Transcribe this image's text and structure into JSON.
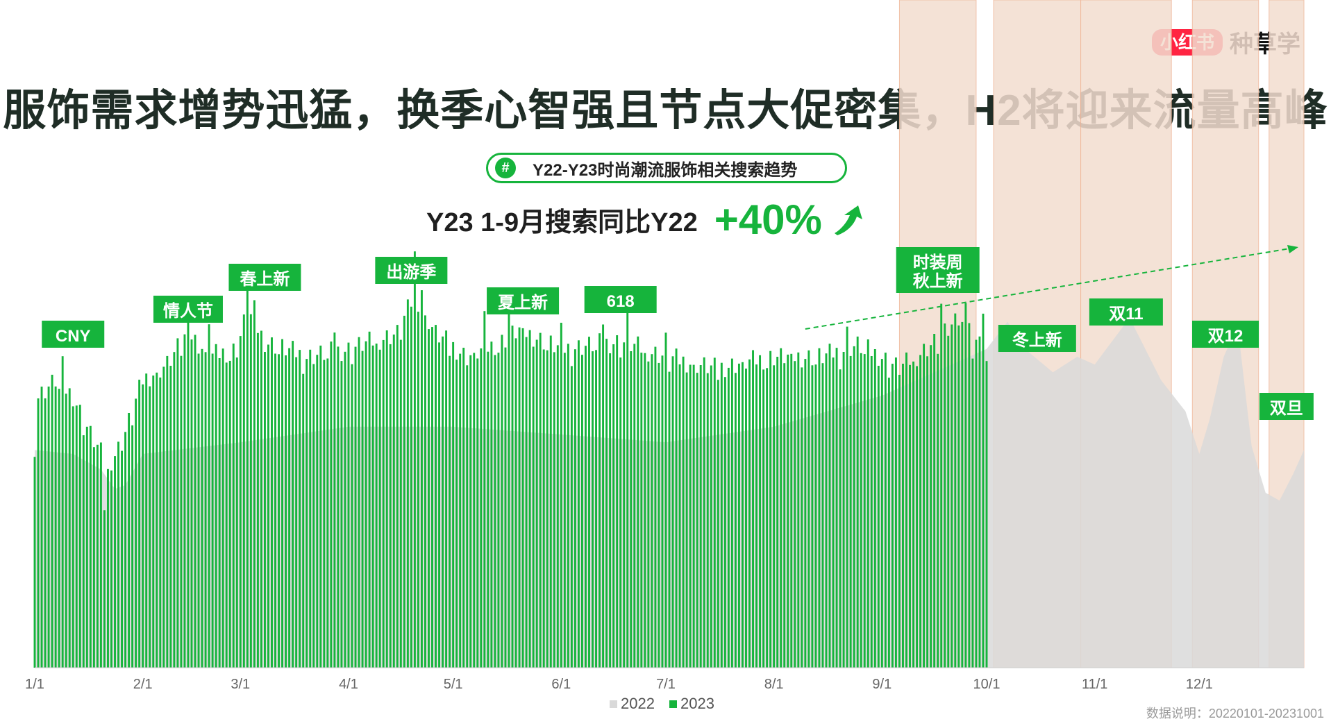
{
  "brand": {
    "badge": "小红书",
    "text": "种草学"
  },
  "headline": "服饰需求增势迅猛，换季心智强且节点大促密集，H2将迎来流量高峰",
  "subtitle_pill": {
    "icon": "hash-icon",
    "text": "Y22-Y23时尚潮流服饰相关搜索趋势"
  },
  "stat": {
    "label": "Y23 1-9月搜索同比Y22",
    "value": "+40%",
    "icon": "up-arrow-icon"
  },
  "footnote": "数据说明：20220101-20231001",
  "colors": {
    "series_2023": "#16b43c",
    "series_2022": "#d9d9d9",
    "highlight": "#f3ddd0",
    "accent": "#16b43c",
    "brand": "#ff2442"
  },
  "chart_data": {
    "type": "area",
    "x_axis": {
      "type": "date",
      "range": [
        "2023-01-01",
        "2023-12-31"
      ],
      "tick_labels": [
        "1/1",
        "2/1",
        "3/1",
        "4/1",
        "5/1",
        "6/1",
        "7/1",
        "8/1",
        "9/1",
        "10/1",
        "11/1",
        "12/1"
      ]
    },
    "y_axis": {
      "visible": false,
      "unit": "relative search index",
      "ylim": [
        0,
        100
      ]
    },
    "grid": false,
    "legend": {
      "position": "bottom-center",
      "items": [
        {
          "name": "2022",
          "color": "#d9d9d9"
        },
        {
          "name": "2023",
          "color": "#16b43c"
        }
      ]
    },
    "series": [
      {
        "name": "2023",
        "mark": "bar",
        "range": [
          "2023-01-01",
          "2023-10-01"
        ],
        "keypoints": [
          [
            "2023-01-01",
            69
          ],
          [
            "2023-01-07",
            74
          ],
          [
            "2023-01-12",
            70
          ],
          [
            "2023-01-17",
            60
          ],
          [
            "2023-01-22",
            52
          ],
          [
            "2023-01-26",
            58
          ],
          [
            "2023-02-01",
            74
          ],
          [
            "2023-02-08",
            78
          ],
          [
            "2023-02-14",
            86
          ],
          [
            "2023-02-20",
            80
          ],
          [
            "2023-02-28",
            82
          ],
          [
            "2023-03-03",
            92
          ],
          [
            "2023-03-08",
            84
          ],
          [
            "2023-03-20",
            80
          ],
          [
            "2023-04-01",
            82
          ],
          [
            "2023-04-15",
            86
          ],
          [
            "2023-04-20",
            96
          ],
          [
            "2023-04-26",
            86
          ],
          [
            "2023-05-05",
            80
          ],
          [
            "2023-05-15",
            84
          ],
          [
            "2023-05-20",
            87
          ],
          [
            "2023-06-01",
            82
          ],
          [
            "2023-06-18",
            84
          ],
          [
            "2023-07-01",
            80
          ],
          [
            "2023-07-15",
            77
          ],
          [
            "2023-08-01",
            80
          ],
          [
            "2023-08-15",
            80
          ],
          [
            "2023-08-25",
            83
          ],
          [
            "2023-09-01",
            80
          ],
          [
            "2023-09-06",
            77
          ],
          [
            "2023-09-15",
            83
          ],
          [
            "2023-09-25",
            90
          ],
          [
            "2023-10-01",
            82
          ]
        ],
        "spikes": [
          [
            "2023-01-01",
            -10
          ],
          [
            "2023-01-09",
            5
          ],
          [
            "2023-01-21",
            -12
          ],
          [
            "2023-02-14",
            8
          ],
          [
            "2023-02-20",
            10
          ],
          [
            "2023-03-03",
            12
          ],
          [
            "2023-03-05",
            5
          ],
          [
            "2023-03-28",
            6
          ],
          [
            "2023-04-20",
            10
          ],
          [
            "2023-04-22",
            5
          ],
          [
            "2023-05-10",
            7
          ],
          [
            "2023-05-17",
            8
          ],
          [
            "2023-06-01",
            4
          ],
          [
            "2023-06-13",
            6
          ],
          [
            "2023-06-20",
            7
          ],
          [
            "2023-07-01",
            4
          ],
          [
            "2023-08-22",
            4
          ],
          [
            "2023-09-18",
            8
          ],
          [
            "2023-09-22",
            6
          ],
          [
            "2023-09-25",
            6
          ],
          [
            "2023-09-27",
            -10
          ],
          [
            "2023-09-30",
            5
          ]
        ]
      },
      {
        "name": "2022",
        "mark": "area",
        "range": [
          "2023-01-01",
          "2023-12-31"
        ],
        "keypoints": [
          [
            "2023-01-01",
            56
          ],
          [
            "2023-01-12",
            55
          ],
          [
            "2023-01-20",
            51
          ],
          [
            "2023-01-24",
            46
          ],
          [
            "2023-01-27",
            47
          ],
          [
            "2023-02-01",
            55
          ],
          [
            "2023-03-01",
            58
          ],
          [
            "2023-04-01",
            62
          ],
          [
            "2023-05-01",
            62
          ],
          [
            "2023-06-01",
            60
          ],
          [
            "2023-07-01",
            58
          ],
          [
            "2023-08-01",
            62
          ],
          [
            "2023-09-01",
            70
          ],
          [
            "2023-10-01",
            82
          ],
          [
            "2023-10-07",
            89
          ],
          [
            "2023-10-12",
            82
          ],
          [
            "2023-10-20",
            76
          ],
          [
            "2023-10-27",
            80
          ],
          [
            "2023-11-01",
            78
          ],
          [
            "2023-11-11",
            90
          ],
          [
            "2023-11-20",
            74
          ],
          [
            "2023-11-27",
            66
          ],
          [
            "2023-12-01",
            55
          ],
          [
            "2023-12-04",
            64
          ],
          [
            "2023-12-08",
            80
          ],
          [
            "2023-12-12",
            88
          ],
          [
            "2023-12-16",
            57
          ],
          [
            "2023-12-20",
            45
          ],
          [
            "2023-12-24",
            43
          ],
          [
            "2023-12-28",
            50
          ],
          [
            "2023-12-31",
            56
          ]
        ]
      }
    ],
    "highlight_periods": [
      {
        "label": "时装周\n秋上新",
        "start": "2023-09-06",
        "end": "2023-09-28"
      },
      {
        "label": "冬上新",
        "start": "2023-10-03",
        "end": "2023-10-28"
      },
      {
        "label": "双11",
        "start": "2023-10-28",
        "end": "2023-11-23"
      },
      {
        "label": "双12",
        "start": "2023-11-29",
        "end": "2023-12-18"
      },
      {
        "label": "双旦",
        "start": "2023-12-21",
        "end": "2023-12-31"
      }
    ],
    "annotations": [
      {
        "label": "CNY",
        "date": "2023-01-12"
      },
      {
        "label": "情人节",
        "date": "2023-02-14"
      },
      {
        "label": "春上新",
        "date": "2023-03-08"
      },
      {
        "label": "出游季",
        "date": "2023-04-19"
      },
      {
        "label": "夏上新",
        "date": "2023-05-21"
      },
      {
        "label": "618",
        "date": "2023-06-18"
      }
    ],
    "trend_line": {
      "style": "dashed",
      "direction": "up",
      "start": "2023-08-10",
      "end": "2023-12-31"
    }
  }
}
